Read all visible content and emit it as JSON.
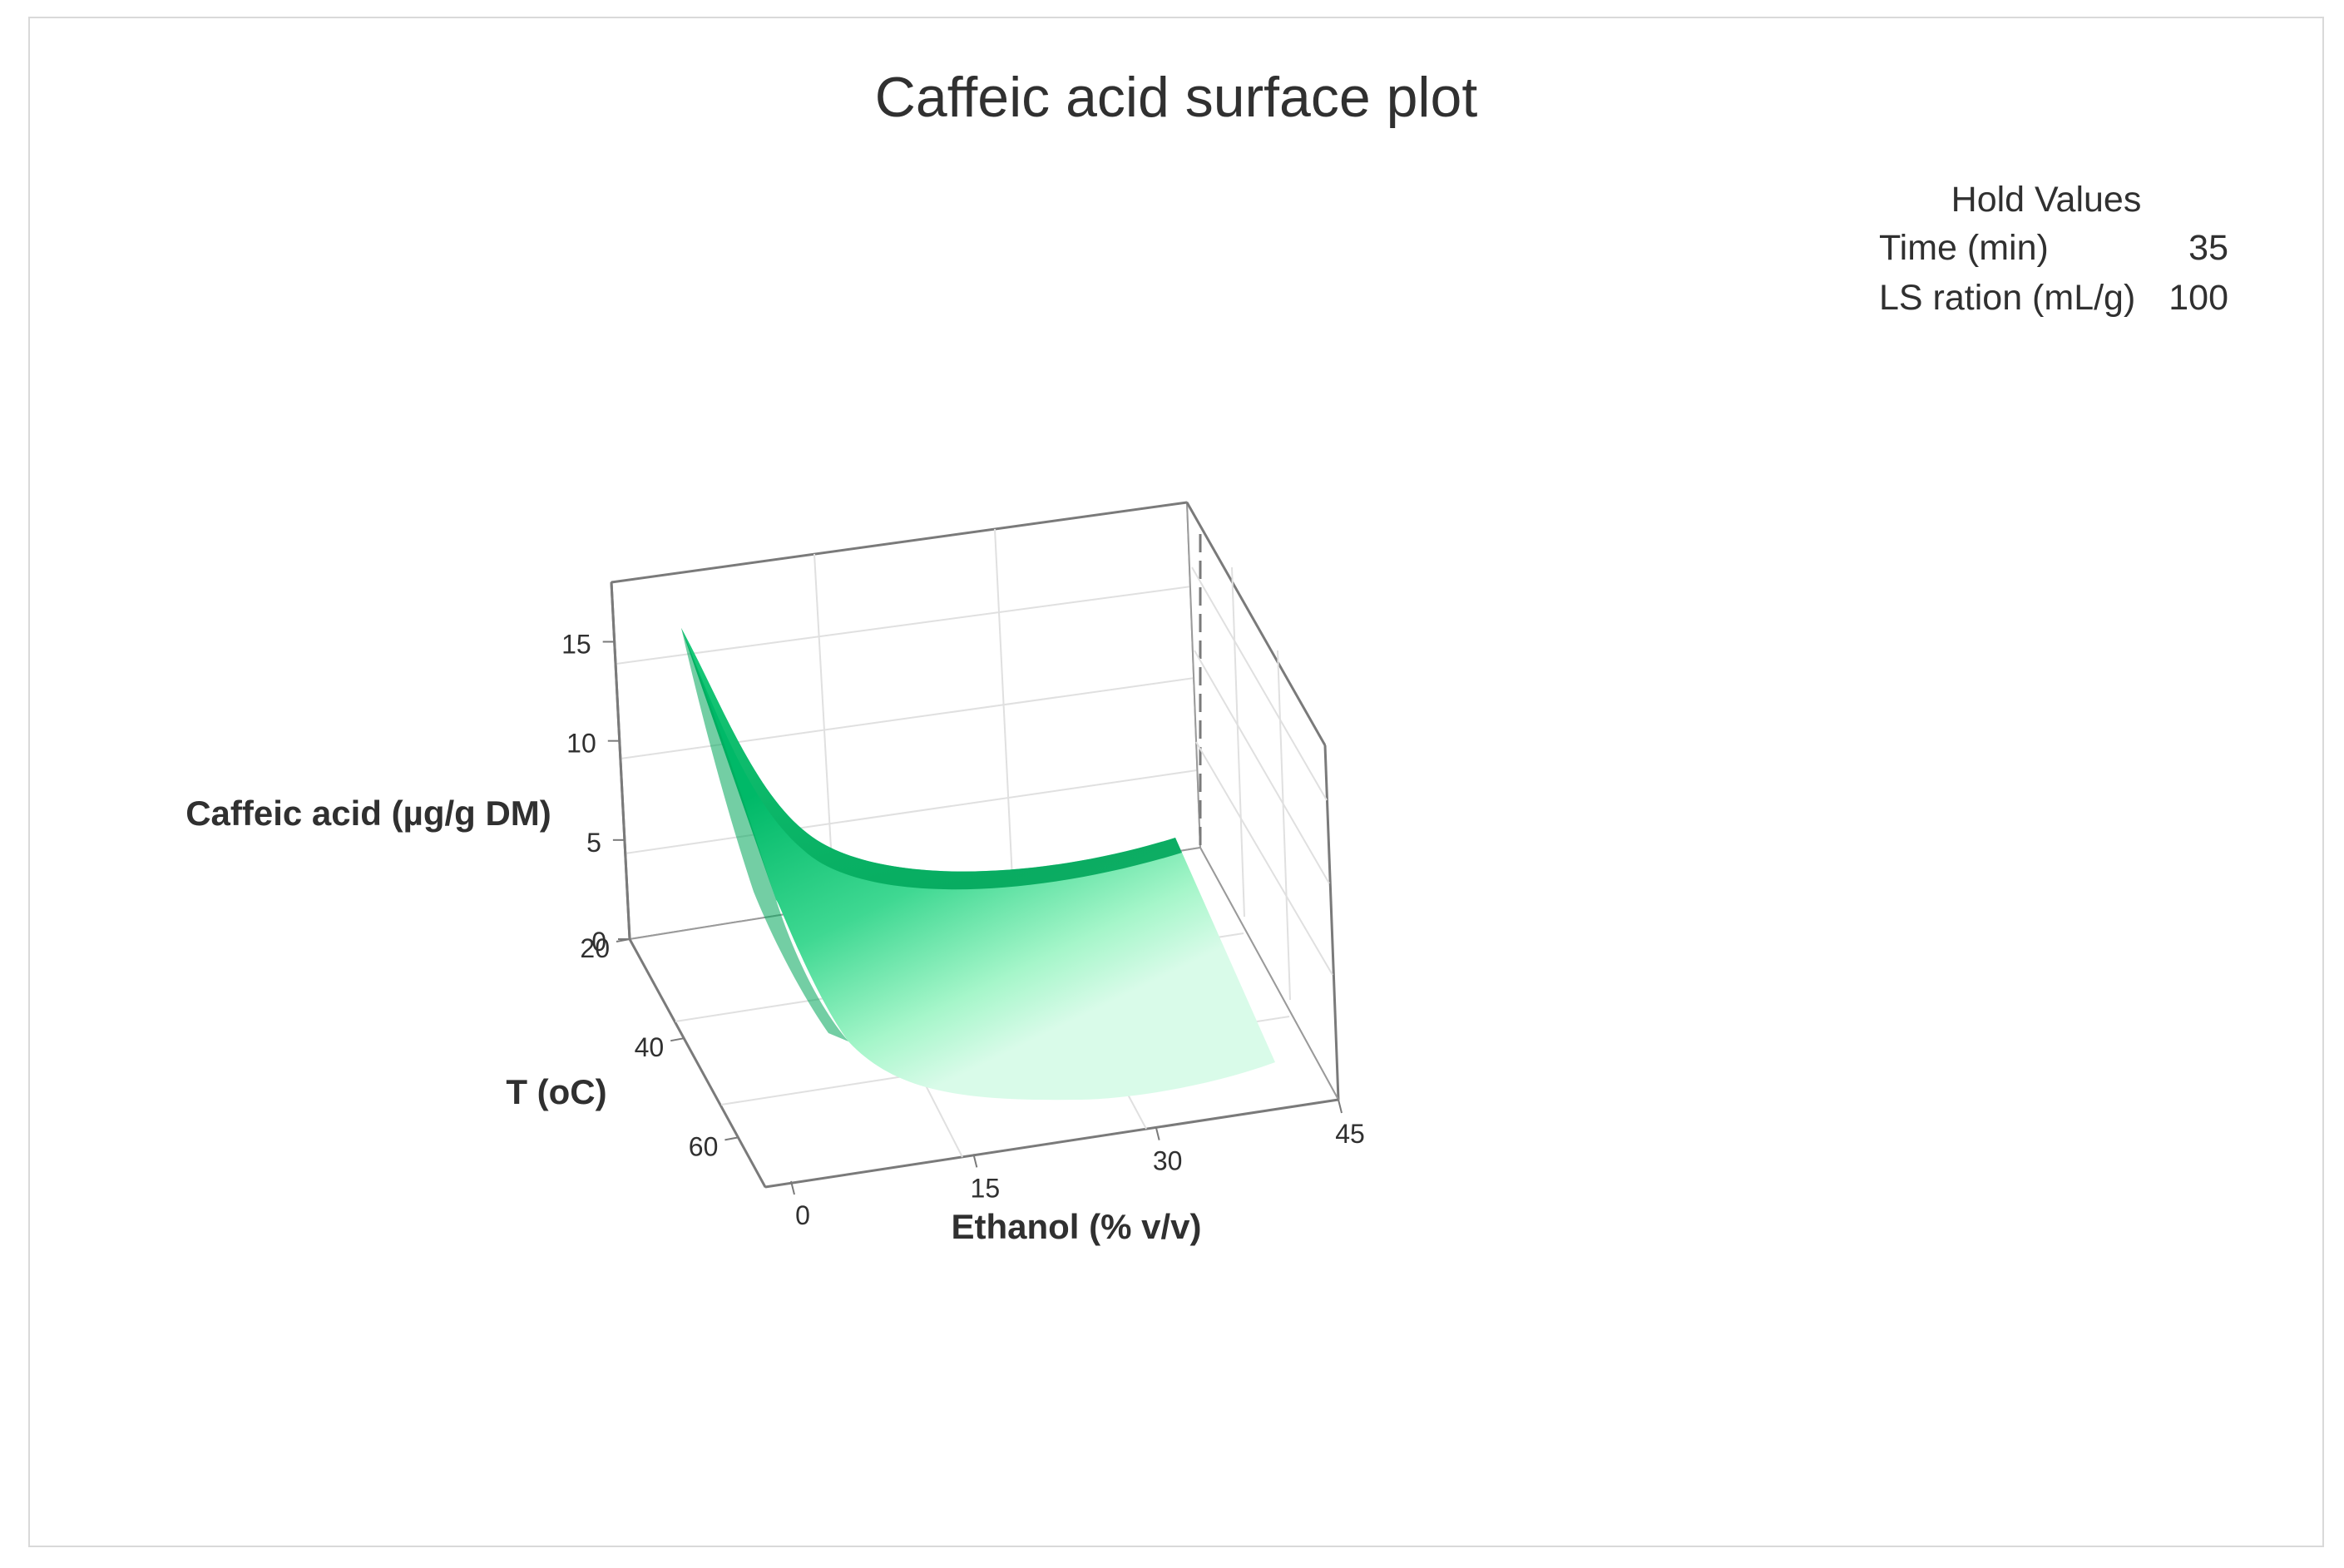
{
  "chart_data": {
    "type": "surface",
    "title": "Caffeic acid surface plot",
    "xlabel": "Ethanol (% v/v)",
    "ylabel": "T (oC)",
    "zlabel": "Caffeic acid (µg/g DM)",
    "x_ticks": [
      "0",
      "15",
      "30",
      "45"
    ],
    "y_ticks": [
      "20",
      "40",
      "60"
    ],
    "z_ticks": [
      "0",
      "5",
      "10",
      "15"
    ],
    "xlim": [
      0,
      45
    ],
    "ylim": [
      20,
      70
    ],
    "zlim": [
      0,
      18
    ],
    "colormap": [
      "#00a85c",
      "#2ccf86",
      "#9ff5c6",
      "#e8fff2"
    ],
    "hold_values": {
      "heading": "Hold Values",
      "rows": [
        {
          "label": "Time (min)",
          "value": "35"
        },
        {
          "label": "LS ration (mL/g)",
          "value": "100"
        }
      ]
    }
  }
}
